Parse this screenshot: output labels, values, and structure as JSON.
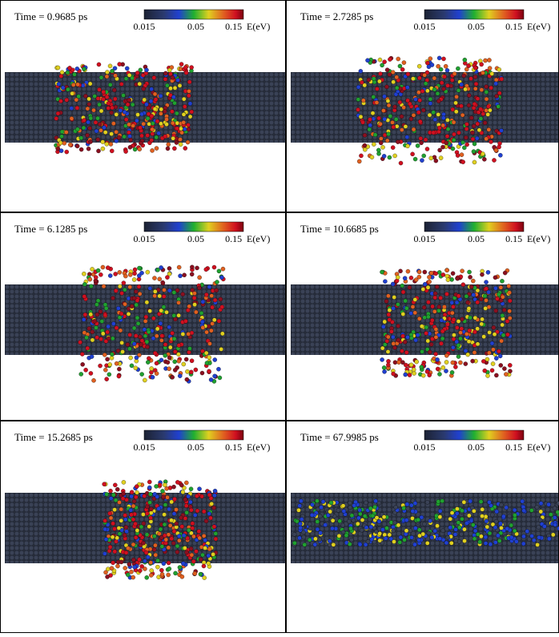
{
  "panels": [
    {
      "time": "Time = 0.9685 ps"
    },
    {
      "time": "Time = 2.7285 ps"
    },
    {
      "time": "Time = 6.1285 ps"
    },
    {
      "time": "Time = 10.6685 ps"
    },
    {
      "time": "Time = 15.2685 ps"
    },
    {
      "time": "Time = 67.9985 ps"
    }
  ],
  "colorbar": {
    "ticks": [
      "0.015",
      "0.05",
      "0.15"
    ],
    "unit": "E(eV)"
  }
}
